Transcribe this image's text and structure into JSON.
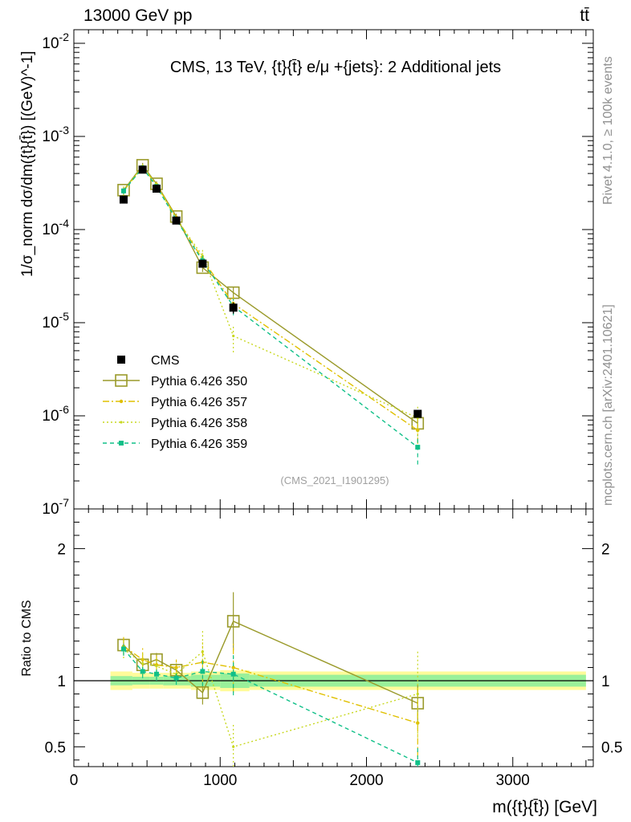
{
  "header": {
    "energy_label": "13000 GeV pp",
    "process_label": "tt̄",
    "plot_title": "CMS, 13 TeV, {t}{t̄} e/μ +{jets}: 2 Additional jets",
    "watermark": "(CMS_2021_I1901295)",
    "side_rivet": "Rivet 4.1.0, ≥ 100k events",
    "side_mcplots": "mcplots.cern.ch [arXiv:2401.10621]"
  },
  "colors": {
    "cms": "#000000",
    "p350": "#9a9a2a",
    "p357": "#e0c000",
    "p358": "#c8d820",
    "p359": "#10c088",
    "band_outer": "#fffb9a",
    "band_inner": "#9af09a"
  },
  "chart_data": [
    {
      "type": "scatter",
      "panel": "main",
      "yscale": "log",
      "ylabel": "1/σ_norm dσ/dm({t}{t̄}) [(GeV)^-1]",
      "ylim": [
        1e-07,
        0.014
      ],
      "xlim": [
        0,
        3550
      ],
      "yticks": [
        "10^-7",
        "10^-6",
        "10^-5",
        "10^-4",
        "10^-3",
        "10^-2"
      ],
      "legend_position": "lower-left",
      "x": [
        340,
        470,
        565,
        700,
        880,
        1090,
        2350
      ],
      "series": [
        {
          "name": "CMS",
          "marker": "square",
          "values": [
            0.00021,
            0.00044,
            0.000275,
            0.000125,
            4.3e-05,
            1.45e-05,
            1.05e-06
          ],
          "err_low": [
            0,
            0,
            0,
            0,
            0,
            2e-06,
            0
          ],
          "err_high": [
            0,
            0,
            0,
            0,
            0,
            2e-06,
            0
          ]
        },
        {
          "name": "Pythia 6.426 350",
          "style": "solid-open-square",
          "values": [
            0.000265,
            0.00049,
            0.00031,
            0.000138,
            3.9e-05,
            2.1e-05,
            8.3e-07
          ],
          "err_low": [
            2e-05,
            3e-05,
            2e-05,
            1e-05,
            4e-06,
            3e-06,
            1.5e-07
          ],
          "err_high": [
            2e-05,
            3e-05,
            2e-05,
            1e-05,
            4e-06,
            3e-06,
            1.5e-07
          ]
        },
        {
          "name": "Pythia 6.426 357",
          "style": "dashdot",
          "values": [
            0.00026,
            0.00047,
            0.000305,
            0.000135,
            4.8e-05,
            1.6e-05,
            7e-07
          ],
          "err_low": [
            3e-05,
            4e-05,
            3e-05,
            1e-05,
            8e-06,
            3e-06,
            2e-07
          ],
          "err_high": [
            3e-05,
            4e-05,
            3e-05,
            1e-05,
            8e-06,
            3e-06,
            2e-07
          ]
        },
        {
          "name": "Pythia 6.426 358",
          "style": "dotted",
          "values": [
            0.00026,
            0.00048,
            0.0003,
            0.00013,
            5.2e-05,
            7.2e-06,
            9.5e-07
          ],
          "err_low": [
            3e-05,
            4e-05,
            3e-05,
            1e-05,
            9e-06,
            2.4e-06,
            3.5e-07
          ],
          "err_high": [
            3e-05,
            4e-05,
            3e-05,
            1e-05,
            9e-06,
            2.4e-06,
            3.5e-07
          ]
        },
        {
          "name": "Pythia 6.426 359",
          "style": "dashed-filled-square",
          "values": [
            0.00026,
            0.00046,
            0.00029,
            0.000128,
            4.6e-05,
            1.5e-05,
            4.6e-07
          ],
          "err_low": [
            2e-05,
            3e-05,
            2e-05,
            1e-05,
            6e-06,
            3e-06,
            1.6e-07
          ],
          "err_high": [
            2e-05,
            3e-05,
            2e-05,
            1e-05,
            6e-06,
            3e-06,
            1.6e-07
          ]
        }
      ]
    },
    {
      "type": "scatter",
      "panel": "ratio",
      "ylabel": "Ratio to CMS",
      "xlabel": "m({t}{t̄}) [GeV]",
      "ylim": [
        0.35,
        2.3
      ],
      "xlim": [
        0,
        3550
      ],
      "yticks": [
        "0.5",
        "1",
        "2"
      ],
      "xticks": [
        "0",
        "1000",
        "2000",
        "3000"
      ],
      "x": [
        340,
        470,
        565,
        700,
        880,
        1090,
        2350
      ],
      "band": {
        "edges": [
          250,
          400,
          520,
          610,
          800,
          1000,
          1200,
          3500
        ],
        "outer": [
          0.07,
          0.06,
          0.06,
          0.06,
          0.07,
          0.08,
          0.07
        ],
        "inner": [
          0.035,
          0.03,
          0.03,
          0.035,
          0.045,
          0.055,
          0.045
        ]
      },
      "series": [
        {
          "name": "Pythia 6.426 350",
          "values": [
            1.27,
            1.12,
            1.16,
            1.08,
            0.91,
            1.45,
            0.83
          ],
          "err_low": [
            0.05,
            0.05,
            0.05,
            0.05,
            0.09,
            0.22,
            0.14
          ],
          "err_high": [
            0.05,
            0.05,
            0.05,
            0.05,
            0.09,
            0.22,
            0.14
          ]
        },
        {
          "name": "Pythia 6.426 357",
          "values": [
            1.26,
            1.16,
            1.12,
            1.1,
            1.14,
            1.1,
            0.68
          ],
          "err_low": [
            0.07,
            0.09,
            0.07,
            0.06,
            0.15,
            0.19,
            0.26
          ],
          "err_high": [
            0.07,
            0.09,
            0.07,
            0.06,
            0.15,
            0.19,
            0.26
          ]
        },
        {
          "name": "Pythia 6.426 358",
          "values": [
            1.24,
            1.13,
            1.11,
            1.05,
            1.22,
            0.5,
            0.9
          ],
          "err_low": [
            0.07,
            0.09,
            0.07,
            0.06,
            0.16,
            0.17,
            0.33
          ],
          "err_high": [
            0.07,
            0.09,
            0.07,
            0.06,
            0.16,
            0.17,
            0.33
          ]
        },
        {
          "name": "Pythia 6.426 359",
          "values": [
            1.24,
            1.07,
            1.05,
            1.02,
            1.07,
            1.05,
            0.38
          ],
          "err_low": [
            0.05,
            0.05,
            0.05,
            0.05,
            0.11,
            0.16,
            0.13
          ],
          "err_high": [
            0.05,
            0.05,
            0.05,
            0.05,
            0.11,
            0.16,
            0.13
          ]
        }
      ]
    }
  ]
}
